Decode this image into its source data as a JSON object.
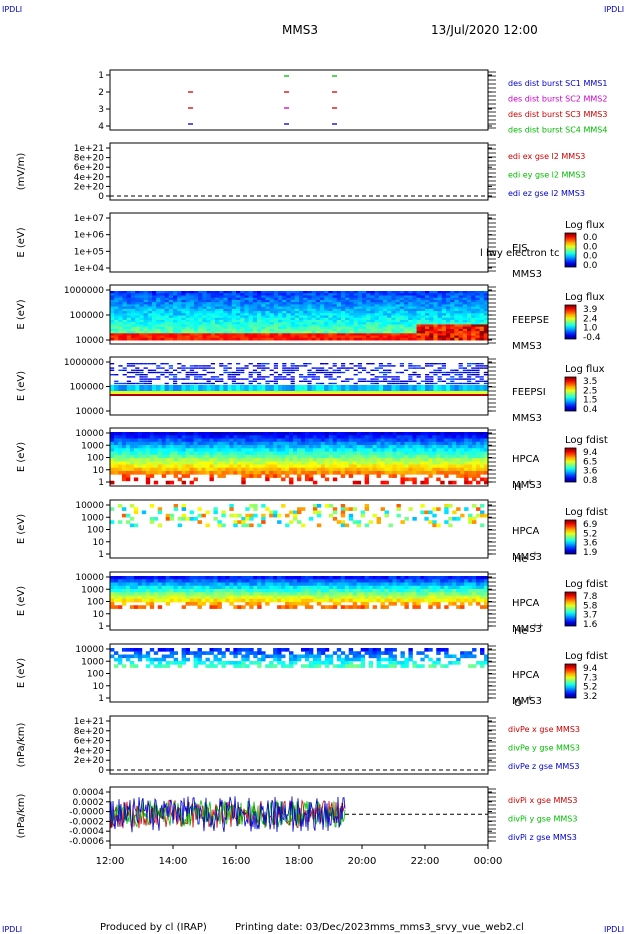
{
  "header": {
    "corner_left_top": "IPDLI",
    "corner_right_top": "IPDLI",
    "corner_left_bottom": "IPDLI",
    "corner_right_bottom": "IPDLI",
    "spacecraft": "MMS3",
    "datetime": "13/Jul/2020 12:00"
  },
  "footer": {
    "produced_by": "Produced by cl (IRAP)",
    "printing_date": "Printing date: 03/Dec/2023",
    "filename": "mms_mms3_srvy_vue_web2.cl"
  },
  "colors": {
    "mms1": "#0000cc",
    "mms2": "#cc00cc",
    "mms3": "#cc0000",
    "mms4": "#00bb00",
    "x": "#cc0000",
    "y": "#00bb00",
    "z": "#0000cc"
  },
  "chart_data": {
    "type": "heatmap",
    "x_range": [
      "12:00",
      "00:00"
    ],
    "x_ticks": [
      "12:00",
      "14:00",
      "16:00",
      "18:00",
      "20:00",
      "22:00",
      "00:00"
    ],
    "panels": [
      {
        "id": "burst",
        "type": "scatter",
        "ylabel": "",
        "yticks": [
          "1",
          "2",
          "3",
          "4"
        ],
        "legend": [
          "des dist burst SC1 MMS1",
          "des dist burst SC2 MMS2",
          "des dist burst SC3 MMS3",
          "des dist burst SC4 MMS4"
        ],
        "legend_colors": [
          "#0000cc",
          "#cc00cc",
          "#cc0000",
          "#00bb00"
        ],
        "right_labels": []
      },
      {
        "id": "edi",
        "type": "line",
        "ylabel": "(mV/m)",
        "yticks": [
          "1e+21",
          "8e+20",
          "6e+20",
          "4e+20",
          "2e+20",
          "0"
        ],
        "legend": [
          "edi ex gse l2 MMS3",
          "edi ey gse l2 MMS3",
          "edi ez gse l2 MMS3"
        ],
        "legend_colors": [
          "#cc0000",
          "#00bb00",
          "#0000cc"
        ],
        "right_labels": []
      },
      {
        "id": "eis",
        "type": "heatmap",
        "ylabel": "E (eV)",
        "yticks": [
          "1e+07",
          "1e+06",
          "1e+05",
          "1e+04"
        ],
        "right_labels": [
          "EIS",
          "MMS3"
        ],
        "overlay_text": "l lwy electron tc",
        "cb_title": "Log flux",
        "cb_ticks": [
          "0.0",
          "0.0",
          "0.0",
          "0.0"
        ]
      },
      {
        "id": "feepse",
        "type": "heatmap",
        "ylabel": "E (eV)",
        "yticks": [
          "1000000",
          "100000",
          "10000"
        ],
        "right_labels": [
          "FEEPSE",
          "MMS3"
        ],
        "cb_title": "Log flux",
        "cb_ticks": [
          "3.9",
          "2.4",
          "1.0",
          "-0.4"
        ]
      },
      {
        "id": "feepsi",
        "type": "heatmap",
        "ylabel": "E (eV)",
        "yticks": [
          "1000000",
          "100000",
          "10000"
        ],
        "right_labels": [
          "FEEPSI",
          "MMS3"
        ],
        "cb_title": "Log flux",
        "cb_ticks": [
          "3.5",
          "2.5",
          "1.5",
          "0.4"
        ]
      },
      {
        "id": "hpca_h",
        "type": "heatmap",
        "ylabel": "E (eV)",
        "yticks": [
          "10000",
          "1000",
          "100",
          "10",
          "1"
        ],
        "right_labels": [
          "HPCA",
          "MMS3"
        ],
        "species": "H",
        "species_sup": "+",
        "cb_title": "Log fdist",
        "cb_ticks": [
          "9.4",
          "6.5",
          "3.6",
          "0.8"
        ]
      },
      {
        "id": "hpca_he",
        "type": "heatmap",
        "ylabel": "E (eV)",
        "yticks": [
          "10000",
          "1000",
          "100",
          "10",
          "1"
        ],
        "right_labels": [
          "HPCA",
          "MMS3"
        ],
        "species": "He",
        "species_sup": "+",
        "cb_title": "Log fdist",
        "cb_ticks": [
          "6.9",
          "5.2",
          "3.6",
          "1.9"
        ]
      },
      {
        "id": "hpca_hepp",
        "type": "heatmap",
        "ylabel": "E (eV)",
        "yticks": [
          "10000",
          "1000",
          "100",
          "10",
          "1"
        ],
        "right_labels": [
          "HPCA",
          "MMS3"
        ],
        "species": "He",
        "species_sup": "++",
        "cb_title": "Log fdist",
        "cb_ticks": [
          "7.8",
          "5.8",
          "3.7",
          "1.6"
        ]
      },
      {
        "id": "hpca_o",
        "type": "heatmap",
        "ylabel": "E (eV)",
        "yticks": [
          "10000",
          "1000",
          "100",
          "10",
          "1"
        ],
        "right_labels": [
          "HPCA",
          "MMS3"
        ],
        "species": "O",
        "species_sup": "+",
        "cb_title": "Log fdist",
        "cb_ticks": [
          "9.4",
          "7.3",
          "5.2",
          "3.2"
        ]
      },
      {
        "id": "divpe",
        "type": "line",
        "ylabel": "(nPa/km)",
        "yticks": [
          "1e+21",
          "8e+20",
          "6e+20",
          "4e+20",
          "2e+20",
          "0"
        ],
        "legend": [
          "divPe x gse MMS3",
          "divPe y gse MMS3",
          "divPe z gse MMS3"
        ],
        "legend_colors": [
          "#cc0000",
          "#00bb00",
          "#0000cc"
        ],
        "right_labels": []
      },
      {
        "id": "divpi",
        "type": "line",
        "ylabel": "(nPa/km)",
        "yticks": [
          "0.0004",
          "0.0002",
          "-0.0000",
          "-0.0002",
          "-0.0004",
          "-0.0006"
        ],
        "legend": [
          "divPi x gse MMS3",
          "divPi y gse MMS3",
          "divPi z gse MMS3"
        ],
        "legend_colors": [
          "#cc0000",
          "#00bb00",
          "#0000cc"
        ],
        "right_labels": []
      }
    ]
  }
}
